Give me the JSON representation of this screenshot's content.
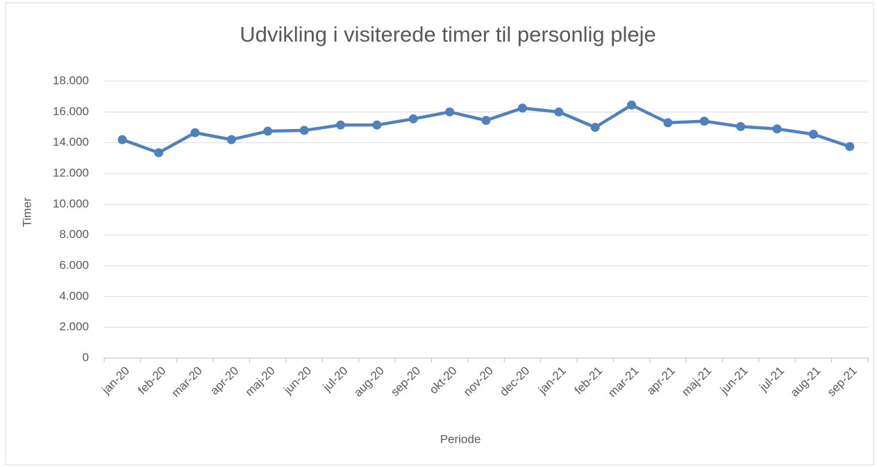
{
  "chart_data": {
    "type": "line",
    "title": "Udvikling i visiterede timer til personlig pleje",
    "xlabel": "Periode",
    "ylabel": "Timer",
    "categories": [
      "jan-20",
      "feb-20",
      "mar-20",
      "apr-20",
      "maj-20",
      "jun-20",
      "jul-20",
      "aug-20",
      "sep-20",
      "okt-20",
      "nov-20",
      "dec-20",
      "jan-21",
      "feb-21",
      "mar-21",
      "apr-21",
      "maj-21",
      "jun-21",
      "jul-21",
      "aug-21",
      "sep-21"
    ],
    "series": [
      {
        "name": "Timer",
        "color": "#4f81bd",
        "values": [
          14200,
          13350,
          14650,
          14200,
          14750,
          14800,
          15150,
          15150,
          15550,
          16000,
          15450,
          16250,
          16000,
          15000,
          16450,
          15300,
          15400,
          15050,
          14900,
          14550,
          13750
        ]
      }
    ],
    "ylim": [
      0,
      18000
    ],
    "yticks": [
      0,
      {
        "value": 2000,
        "label": "2.000"
      },
      {
        "value": 4000,
        "label": "4.000"
      },
      {
        "value": 6000,
        "label": "6.000"
      },
      {
        "value": 8000,
        "label": "8.000"
      },
      {
        "value": 10000,
        "label": "10.000"
      },
      {
        "value": 12000,
        "label": "12.000"
      },
      {
        "value": 14000,
        "label": "14.000"
      },
      {
        "value": 16000,
        "label": "16.000"
      },
      {
        "value": 18000,
        "label": "18.000"
      }
    ],
    "grid": true
  }
}
